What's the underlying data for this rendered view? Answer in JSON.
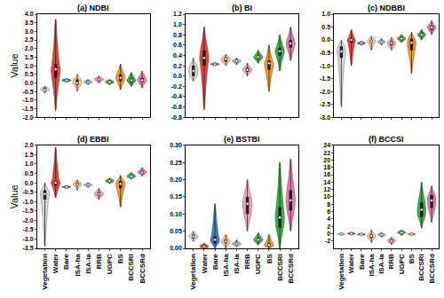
{
  "chart_data": [
    {
      "type": "violin",
      "title": "(a) NDBI",
      "y_label": "Value",
      "tick_labels": "y",
      "categories": [
        "Vegetation",
        "Water",
        "Bare",
        "ISA-ha",
        "ISA-la",
        "RRB",
        "UGPC",
        "BS",
        "BCCSRl",
        "BCCSRd"
      ],
      "colors": [
        "#d9d9d9",
        "#e8433f",
        "#4a7fc1",
        "#f6c9a3",
        "#a9c4e0",
        "#f4a7b9",
        "#4daf4a",
        "#f39c30",
        "#3cb04a",
        "#e87fb0"
      ],
      "min": [
        -0.6,
        -1.6,
        0.05,
        -0.5,
        -0.1,
        0,
        -0.1,
        -0.4,
        -0.2,
        -0.3
      ],
      "q1": [
        -0.45,
        0.3,
        0.1,
        -0.1,
        0,
        0.12,
        0,
        0.1,
        0.05,
        0.05
      ],
      "median": [
        -0.4,
        0.8,
        0.15,
        0,
        0.05,
        0.2,
        0.05,
        0.3,
        0.15,
        0.15
      ],
      "q3": [
        -0.3,
        1.1,
        0.2,
        0.2,
        0.1,
        0.28,
        0.1,
        0.5,
        0.25,
        0.3
      ],
      "max": [
        -0.2,
        3.7,
        0.25,
        0.5,
        0.2,
        0.4,
        0.2,
        1.1,
        0.6,
        0.7
      ],
      "ylim": [
        -2.0,
        4.0
      ],
      "yticks": [
        {
          "value": -2,
          "label": "-2.0"
        },
        {
          "value": -1.5,
          "label": "-1.5"
        },
        {
          "value": -1,
          "label": "-1.0"
        },
        {
          "value": -0.5,
          "label": "-0.5"
        },
        {
          "value": 0,
          "label": "0.0"
        },
        {
          "value": 0.5,
          "label": "0.5"
        },
        {
          "value": 1,
          "label": "1.0"
        },
        {
          "value": 1.5,
          "label": "1.5"
        },
        {
          "value": 2,
          "label": "2.0"
        },
        {
          "value": 2.5,
          "label": "2.5"
        },
        {
          "value": 3,
          "label": "3.0"
        },
        {
          "value": 3.5,
          "label": "3.5"
        },
        {
          "value": 4,
          "label": "4.0"
        }
      ]
    },
    {
      "type": "violin",
      "title": "(b) BI",
      "tick_labels": "y",
      "categories": [
        "Vegetation",
        "Water",
        "Bare",
        "ISA-ha",
        "ISA-la",
        "RRB",
        "UGPC",
        "BS",
        "BCCSRl",
        "BCCSRd"
      ],
      "colors": [
        "#d9d9d9",
        "#e8433f",
        "#4a7fc1",
        "#f6c9a3",
        "#a9c4e0",
        "#f4a7b9",
        "#4daf4a",
        "#f39c30",
        "#3cb04a",
        "#e87fb0"
      ],
      "min": [
        -0.1,
        -0.65,
        0.2,
        0.2,
        0.22,
        0,
        0.25,
        -0.3,
        0.1,
        0.3
      ],
      "q1": [
        0,
        0.2,
        0.22,
        0.28,
        0.27,
        0.08,
        0.33,
        0.12,
        0.4,
        0.55
      ],
      "median": [
        0.1,
        0.35,
        0.23,
        0.33,
        0.29,
        0.12,
        0.37,
        0.25,
        0.48,
        0.63
      ],
      "q3": [
        0.2,
        0.5,
        0.24,
        0.36,
        0.31,
        0.16,
        0.4,
        0.3,
        0.55,
        0.7
      ],
      "max": [
        0.35,
        0.95,
        0.26,
        0.42,
        0.35,
        0.25,
        0.5,
        0.6,
        0.8,
        0.95
      ],
      "ylim": [
        -0.8,
        1.2
      ],
      "yticks": [
        {
          "value": -0.8,
          "label": "-0.8"
        },
        {
          "value": -0.6,
          "label": "-0.6"
        },
        {
          "value": -0.4,
          "label": "-0.4"
        },
        {
          "value": -0.2,
          "label": "-0.2"
        },
        {
          "value": 0,
          "label": "0.0"
        },
        {
          "value": 0.2,
          "label": "0.2"
        },
        {
          "value": 0.4,
          "label": "0.4"
        },
        {
          "value": 0.6,
          "label": "0.6"
        },
        {
          "value": 0.8,
          "label": "0.8"
        },
        {
          "value": 1,
          "label": "1.0"
        },
        {
          "value": 1.2,
          "label": "1.2"
        }
      ]
    },
    {
      "type": "violin",
      "title": "(c) NDBBI",
      "tick_labels": "y",
      "categories": [
        "Vegetation",
        "Water",
        "Bare",
        "ISA-ha",
        "ISA-la",
        "RRB",
        "UGPC",
        "BS",
        "BCCSRl",
        "BCCSRd"
      ],
      "colors": [
        "#d9d9d9",
        "#e8433f",
        "#4a7fc1",
        "#f6c9a3",
        "#a9c4e0",
        "#f4a7b9",
        "#4daf4a",
        "#f39c30",
        "#3cb04a",
        "#e87fb0"
      ],
      "min": [
        -2.6,
        -1.0,
        -0.2,
        -0.4,
        -0.2,
        -0.4,
        -0.1,
        -1.3,
        0,
        0.2
      ],
      "q1": [
        -0.7,
        -0.1,
        -0.15,
        -0.1,
        -0.1,
        -0.2,
        0,
        -0.4,
        0.15,
        0.4
      ],
      "median": [
        -0.45,
        0,
        -0.12,
        -0.05,
        -0.08,
        -0.12,
        0.05,
        -0.1,
        0.2,
        0.48
      ],
      "q3": [
        -0.25,
        0.05,
        -0.1,
        0,
        -0.05,
        -0.05,
        0.1,
        0.05,
        0.25,
        0.55
      ],
      "max": [
        0,
        0.4,
        -0.05,
        0.15,
        0.05,
        0.1,
        0.2,
        0.3,
        0.4,
        0.75
      ],
      "ylim": [
        -3.0,
        1.0
      ],
      "yticks": [
        {
          "value": -3,
          "label": "-3.0"
        },
        {
          "value": -2.5,
          "label": "-2.5"
        },
        {
          "value": -2,
          "label": "-2.0"
        },
        {
          "value": -1.5,
          "label": "-1.5"
        },
        {
          "value": -1,
          "label": "-1.0"
        },
        {
          "value": -0.5,
          "label": "-0.5"
        },
        {
          "value": 0,
          "label": "0.0"
        },
        {
          "value": 0.5,
          "label": "0.5"
        },
        {
          "value": 1,
          "label": "1.0"
        }
      ]
    },
    {
      "type": "violin",
      "title": "(d) EBBI",
      "y_label": "Value",
      "categories": [
        "Vegetation",
        "Water",
        "Bare",
        "ISA-ha",
        "ISA-la",
        "RRB",
        "UGPC",
        "BS",
        "BCCSRl",
        "BCCSRd"
      ],
      "colors": [
        "#d9d9d9",
        "#e8433f",
        "#4a7fc1",
        "#f6c9a3",
        "#a9c4e0",
        "#f4a7b9",
        "#4daf4a",
        "#f39c30",
        "#3cb04a",
        "#e87fb0"
      ],
      "min": [
        -3.4,
        -0.8,
        -0.3,
        -0.4,
        -0.25,
        -0.9,
        -0.05,
        -1.3,
        0.2,
        0.35
      ],
      "q1": [
        -0.9,
        -0.15,
        -0.25,
        -0.15,
        -0.15,
        -0.7,
        0.05,
        -0.3,
        0.3,
        0.5
      ],
      "median": [
        -0.6,
        0,
        -0.22,
        -0.08,
        -0.12,
        -0.6,
        0.1,
        -0.05,
        0.35,
        0.55
      ],
      "q3": [
        -0.4,
        0.1,
        -0.2,
        0,
        -0.08,
        -0.5,
        0.15,
        0.1,
        0.4,
        0.62
      ],
      "max": [
        0,
        1.9,
        -0.15,
        0.15,
        0,
        -0.3,
        0.25,
        0.4,
        0.55,
        0.8
      ],
      "ylim": [
        -3.5,
        2.0
      ],
      "yticks": [
        {
          "value": -3.5,
          "label": "-3.5"
        },
        {
          "value": -3,
          "label": "-3.0"
        },
        {
          "value": -2.5,
          "label": "-2.5"
        },
        {
          "value": -2,
          "label": "-2.0"
        },
        {
          "value": -1.5,
          "label": "-1.5"
        },
        {
          "value": -1,
          "label": "-1.0"
        },
        {
          "value": -0.5,
          "label": "-0.5"
        },
        {
          "value": 0,
          "label": "0.0"
        },
        {
          "value": 0.5,
          "label": "0.5"
        },
        {
          "value": 1,
          "label": "1.0"
        },
        {
          "value": 1.5,
          "label": "1.5"
        },
        {
          "value": 2,
          "label": "2.0"
        }
      ]
    },
    {
      "type": "violin",
      "title": "(e) BSTBI",
      "categories": [
        "Vegetation",
        "Water",
        "Bare",
        "ISA-ha",
        "ISA-la",
        "RRB",
        "UGPC",
        "BS",
        "BCCSRl",
        "BCCSRd"
      ],
      "colors": [
        "#d9d9d9",
        "#e8433f",
        "#4a7fc1",
        "#f6c9a3",
        "#a9c4e0",
        "#f4a7b9",
        "#4daf4a",
        "#f39c30",
        "#3cb04a",
        "#e87fb0"
      ],
      "min": [
        0.02,
        0,
        0,
        0,
        0.005,
        0.05,
        0.01,
        0,
        0,
        0.05
      ],
      "q1": [
        0.03,
        0.003,
        0.015,
        0.015,
        0.01,
        0.1,
        0.02,
        0.005,
        0.06,
        0.11
      ],
      "median": [
        0.035,
        0.005,
        0.025,
        0.02,
        0.013,
        0.13,
        0.025,
        0.01,
        0.09,
        0.14
      ],
      "q3": [
        0.04,
        0.008,
        0.035,
        0.025,
        0.016,
        0.15,
        0.03,
        0.015,
        0.12,
        0.17
      ],
      "max": [
        0.05,
        0.015,
        0.13,
        0.04,
        0.025,
        0.2,
        0.045,
        0.04,
        0.25,
        0.26
      ],
      "ylim": [
        0,
        0.3
      ],
      "yticks": [
        {
          "value": 0,
          "label": "0.00"
        },
        {
          "value": 0.05,
          "label": "0.05"
        },
        {
          "value": 0.1,
          "label": "0.10"
        },
        {
          "value": 0.15,
          "label": "0.15"
        },
        {
          "value": 0.2,
          "label": "0.20"
        },
        {
          "value": 0.25,
          "label": "0.25"
        },
        {
          "value": 0.3,
          "label": "0.30"
        }
      ]
    },
    {
      "type": "violin",
      "title": "(f) BCCSI",
      "categories": [
        "Vegetation",
        "Water",
        "Bare",
        "ISA-ha",
        "ISA-la",
        "RRB",
        "UGPC",
        "BS",
        "BCCSRl",
        "BCCSRd"
      ],
      "colors": [
        "#d9d9d9",
        "#e8433f",
        "#4a7fc1",
        "#f6c9a3",
        "#a9c4e0",
        "#f4a7b9",
        "#4daf4a",
        "#f39c30",
        "#3cb04a",
        "#e87fb0"
      ],
      "min": [
        -0.5,
        -0.4,
        -0.5,
        -2.5,
        -1.0,
        -3.0,
        -0.5,
        -0.5,
        1.5,
        3
      ],
      "q1": [
        -0.2,
        -0.1,
        -0.3,
        -1.2,
        -0.5,
        -2.3,
        0.1,
        -0.2,
        4.5,
        7
      ],
      "median": [
        -0.1,
        0,
        -0.2,
        -0.6,
        -0.3,
        -2.0,
        0.3,
        -0.1,
        6.5,
        9
      ],
      "q3": [
        0,
        0.1,
        -0.1,
        -0.2,
        -0.1,
        -1.6,
        0.5,
        0,
        8.5,
        10.5
      ],
      "max": [
        0.2,
        0.4,
        0.1,
        1.0,
        0.3,
        -1.0,
        1.0,
        0.2,
        14,
        13
      ],
      "ylim": [
        -4,
        24
      ],
      "yticks": [
        -2,
        0,
        2,
        4,
        6,
        8,
        10,
        12,
        14,
        16,
        18,
        20,
        22,
        24
      ]
    }
  ]
}
